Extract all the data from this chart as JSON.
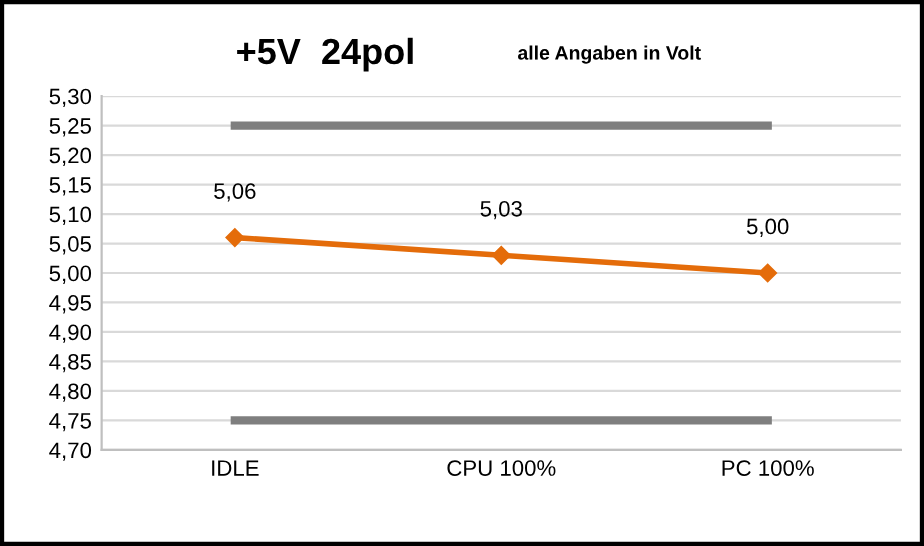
{
  "chart_data": {
    "type": "line",
    "title": "+5V  24pol",
    "subtitle": "alle Angaben in Volt",
    "categories": [
      "IDLE",
      "CPU 100%",
      "PC 100%"
    ],
    "series": [
      {
        "color": "#e46c0a",
        "values": [
          5.06,
          5.03,
          5.0
        ],
        "marker": "diamond",
        "value_labels": [
          "5,06",
          "5,03",
          "5,00"
        ]
      },
      {
        "color": "#7f7f7f",
        "values": [
          5.25,
          5.25,
          5.25
        ],
        "marker": "none"
      },
      {
        "color": "#7f7f7f",
        "values": [
          4.75,
          4.75,
          4.75
        ],
        "marker": "none"
      }
    ],
    "ylim": [
      4.7,
      5.3
    ],
    "yticks": [
      {
        "value": 4.7,
        "label": "4,70"
      },
      {
        "value": 4.75,
        "label": "4,75"
      },
      {
        "value": 4.8,
        "label": "4,80"
      },
      {
        "value": 4.85,
        "label": "4,85"
      },
      {
        "value": 4.9,
        "label": "4,90"
      },
      {
        "value": 4.95,
        "label": "4,95"
      },
      {
        "value": 5.0,
        "label": "5,00"
      },
      {
        "value": 5.05,
        "label": "5,05"
      },
      {
        "value": 5.1,
        "label": "5,10"
      },
      {
        "value": 5.15,
        "label": "5,15"
      },
      {
        "value": 5.2,
        "label": "5,20"
      },
      {
        "value": 5.25,
        "label": "5,25"
      },
      {
        "value": 5.3,
        "label": "5,30"
      }
    ],
    "grid": "y",
    "legend": false
  }
}
